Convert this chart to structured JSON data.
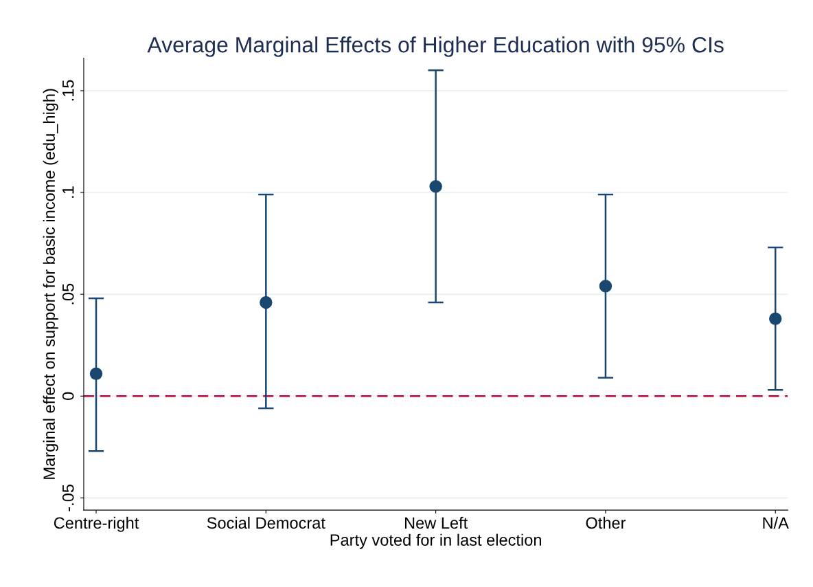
{
  "chart_data": {
    "type": "scatter",
    "title": "Average Marginal Effects of Higher Education with 95% CIs",
    "xlabel": "Party voted for in last election",
    "ylabel": "Marginal effect on support for basic income (edu_high)",
    "categories": [
      "Centre-right",
      "Social Democrat",
      "New Left",
      "Other",
      "N/A"
    ],
    "values": [
      0.011,
      0.046,
      0.103,
      0.054,
      0.038
    ],
    "errors": [
      [
        -0.027,
        0.048
      ],
      [
        -0.006,
        0.099
      ],
      [
        0.046,
        0.16
      ],
      [
        0.009,
        0.099
      ],
      [
        0.003,
        0.073
      ]
    ],
    "color": "#1a476f",
    "ylim": [
      -0.056,
      0.166
    ],
    "yticks": [
      {
        "value": -0.05,
        "label": "-.05"
      },
      0,
      {
        "value": 0.05,
        "label": ".05"
      },
      {
        "value": 0.1,
        "label": ".1"
      },
      {
        "value": 0.15,
        "label": ".15"
      }
    ],
    "ref_lines": [
      {
        "axis": "y",
        "value": 0,
        "color": "#c10534",
        "line_style": "dashed"
      }
    ],
    "grid": "y",
    "marker": "circle"
  }
}
